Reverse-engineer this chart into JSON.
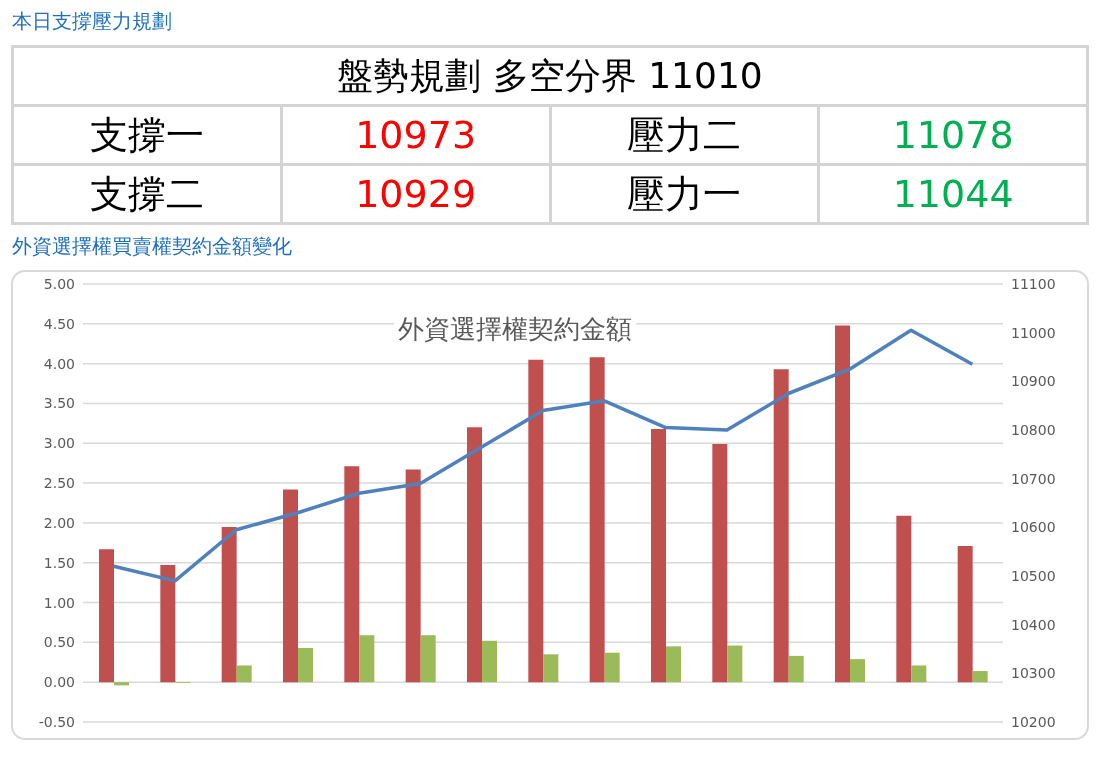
{
  "chart_data": [
    {
      "type": "other",
      "title": "本日支撐壓力規劃",
      "subtitle": "盤勢規劃 多空分界 11010",
      "categories": [
        "支撐一",
        "壓力二",
        "支撐二",
        "壓力一"
      ],
      "values": [
        10973,
        11078,
        10929,
        11044
      ],
      "colors": [
        "#ff0000",
        "#00b050",
        "#ff0000",
        "#00b050"
      ],
      "data_labels": true
    },
    {
      "type": "bar",
      "title": "外資選擇權買賣權契約金額變化",
      "subtitle": "外資選擇權契約金額",
      "categories": [
        null,
        null,
        null,
        null,
        null,
        null,
        null,
        null,
        null,
        null,
        null,
        null,
        null,
        null,
        null
      ],
      "series": [
        {
          "color": "#c0504d",
          "values": [
            1.67,
            1.47,
            1.95,
            2.42,
            2.71,
            2.67,
            3.2,
            4.05,
            4.08,
            3.18,
            2.99,
            3.93,
            4.48,
            2.09,
            1.71
          ]
        },
        {
          "color": "#9bbb59",
          "values": [
            -0.04,
            -0.01,
            0.21,
            0.43,
            0.59,
            0.59,
            0.52,
            0.35,
            0.37,
            0.45,
            0.46,
            0.33,
            0.29,
            0.21,
            0.14
          ]
        },
        {
          "type": "line",
          "axis": "y2",
          "color": "#4f81bd",
          "values": [
            10520,
            10490,
            10595,
            10630,
            10670,
            10690,
            10765,
            10840,
            10860,
            10805,
            10800,
            10875,
            10925,
            11005,
            10935
          ]
        }
      ],
      "ylim": [
        -0.5,
        5
      ],
      "yticks": [
        {
          "value": -0.5,
          "label": "-0.50"
        },
        {
          "value": 0,
          "label": "0.00"
        },
        {
          "value": 0.5,
          "label": "0.50"
        },
        {
          "value": 1,
          "label": "1.00"
        },
        {
          "value": 1.5,
          "label": "1.50"
        },
        {
          "value": 2,
          "label": "2.00"
        },
        {
          "value": 2.5,
          "label": "2.50"
        },
        {
          "value": 3,
          "label": "3.00"
        },
        {
          "value": 3.5,
          "label": "3.50"
        },
        {
          "value": 4,
          "label": "4.00"
        },
        {
          "value": 4.5,
          "label": "4.50"
        },
        {
          "value": 5,
          "label": "5.00"
        }
      ],
      "y2lim": [
        10200,
        11100
      ],
      "y2ticks": [
        10200,
        10300,
        10400,
        10500,
        10600,
        10700,
        10800,
        10900,
        11000,
        11100
      ],
      "grid": "y",
      "legend": false,
      "tick_labels": "y",
      "marker": "none"
    }
  ]
}
